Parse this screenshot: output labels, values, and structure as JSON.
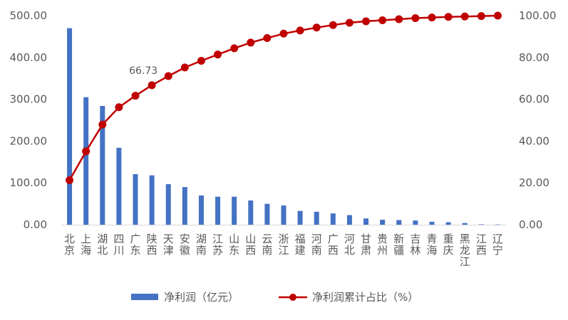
{
  "chart_data": {
    "type": "bar+line",
    "categories": [
      "北京",
      "上海",
      "湖北",
      "四川",
      "广东",
      "陕西",
      "天津",
      "安徽",
      "湖南",
      "江苏",
      "山东",
      "山西",
      "云南",
      "浙江",
      "福建",
      "河南",
      "广西",
      "河北",
      "甘肃",
      "贵州",
      "新疆",
      "吉林",
      "青海",
      "重庆",
      "黑龙江",
      "江西",
      "辽宁"
    ],
    "series": [
      {
        "name": "净利润（亿元）",
        "type": "bar",
        "axis": "left",
        "color": "#4472C4",
        "values": [
          470,
          305,
          284,
          184,
          121,
          118,
          97,
          90,
          70,
          67,
          67,
          58,
          50,
          46,
          33,
          31,
          27,
          23,
          15,
          12,
          11,
          10,
          7,
          6,
          4,
          1,
          0.5
        ]
      },
      {
        "name": "净利润累计占比（%）",
        "type": "line",
        "axis": "right",
        "color": "#C00000",
        "values": [
          21.3,
          35.1,
          47.9,
          56.2,
          61.7,
          66.73,
          71.1,
          75.2,
          78.4,
          81.4,
          84.4,
          87.1,
          89.3,
          91.4,
          92.9,
          94.3,
          95.5,
          96.6,
          97.3,
          97.8,
          98.3,
          98.8,
          99.1,
          99.4,
          99.6,
          99.8,
          100.0
        ]
      }
    ],
    "annotation": {
      "label": "66.73",
      "index": 5
    },
    "y_left": {
      "min": 0,
      "max": 500,
      "ticks": [
        "0.00",
        "100.00",
        "200.00",
        "300.00",
        "400.00",
        "500.00"
      ]
    },
    "y_right": {
      "min": 0,
      "max": 100,
      "ticks": [
        "0.00",
        "20.00",
        "40.00",
        "60.00",
        "80.00",
        "100.00"
      ]
    },
    "grid": false,
    "legend_position": "bottom"
  }
}
